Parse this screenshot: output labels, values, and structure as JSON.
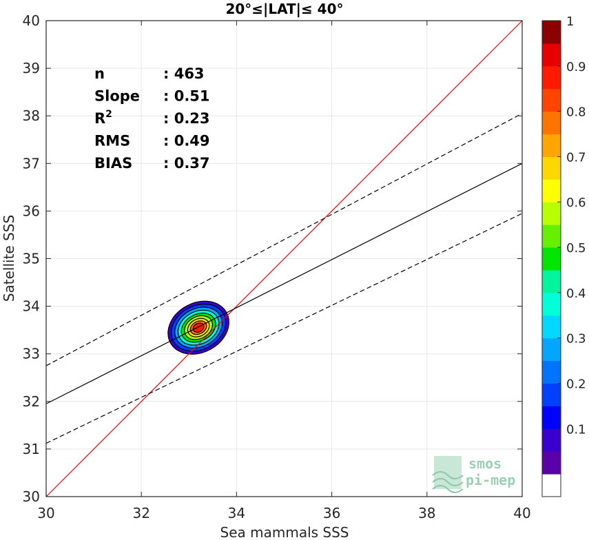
{
  "chart_data": {
    "type": "scatter",
    "title": "20°≤|LAT|≤ 40°",
    "xlabel": "Sea mammals SSS",
    "ylabel": "Satellite SSS",
    "xlim": [
      30,
      40
    ],
    "ylim": [
      30,
      40
    ],
    "xticks": [
      30,
      32,
      34,
      36,
      38,
      40
    ],
    "yticks": [
      30,
      31,
      32,
      33,
      34,
      35,
      36,
      37,
      38,
      39,
      40
    ],
    "grid": true,
    "stats": [
      {
        "label": "n",
        "value": ": 463"
      },
      {
        "label": "Slope",
        "value": ": 0.51"
      },
      {
        "label": "R",
        "sup": "2",
        "value": ": 0.23"
      },
      {
        "label": "RMS",
        "value": ": 0.49"
      },
      {
        "label": "BIAS",
        "value": ": 0.37"
      }
    ],
    "lines": [
      {
        "name": "identity",
        "color": "#ff0000",
        "style": "solid",
        "points": [
          [
            30,
            30
          ],
          [
            40,
            40
          ]
        ]
      },
      {
        "name": "regression",
        "color": "#000000",
        "style": "solid",
        "points": [
          [
            30,
            31.95
          ],
          [
            40,
            37.0
          ]
        ]
      },
      {
        "name": "upper",
        "color": "#000000",
        "style": "dashed",
        "points": [
          [
            30,
            32.75
          ],
          [
            40,
            38.05
          ]
        ]
      },
      {
        "name": "lower",
        "color": "#000000",
        "style": "dashed",
        "points": [
          [
            30,
            31.12
          ],
          [
            40,
            35.95
          ]
        ]
      }
    ],
    "density": {
      "center": [
        33.2,
        33.55
      ],
      "angle_deg": 28,
      "levels": [
        {
          "level": 0.05,
          "rx": 0.67,
          "ry": 0.52
        },
        {
          "level": 0.15,
          "rx": 0.6,
          "ry": 0.46
        },
        {
          "level": 0.25,
          "rx": 0.52,
          "ry": 0.4
        },
        {
          "level": 0.35,
          "rx": 0.45,
          "ry": 0.34
        },
        {
          "level": 0.45,
          "rx": 0.38,
          "ry": 0.28
        },
        {
          "level": 0.55,
          "rx": 0.31,
          "ry": 0.23
        },
        {
          "level": 0.65,
          "rx": 0.24,
          "ry": 0.18
        },
        {
          "level": 0.75,
          "rx": 0.18,
          "ry": 0.13
        },
        {
          "level": 0.85,
          "rx": 0.12,
          "ry": 0.09
        }
      ]
    },
    "colorbar": {
      "range": [
        0,
        1
      ],
      "ticks": [
        0.1,
        0.2,
        0.3,
        0.4,
        0.5,
        0.6,
        0.7,
        0.8,
        0.9,
        1
      ],
      "tick_labels": [
        "0.1",
        "0.2",
        "0.3",
        "0.4",
        "0.5",
        "0.6",
        "0.7",
        "0.8",
        "0.9",
        "1"
      ],
      "colors": [
        "#ffffff",
        "#5a00a8",
        "#3a00d0",
        "#0000ff",
        "#0040ff",
        "#0073ff",
        "#00a6ff",
        "#00d9ff",
        "#00ffd9",
        "#00f59c",
        "#00e600",
        "#66f000",
        "#b8ff00",
        "#ffff00",
        "#ffd700",
        "#ffa500",
        "#ff7400",
        "#ff4500",
        "#ff1a00",
        "#e60000",
        "#8b0000"
      ]
    }
  },
  "logo": {
    "line1": "smos",
    "line2": "pi-mep"
  }
}
